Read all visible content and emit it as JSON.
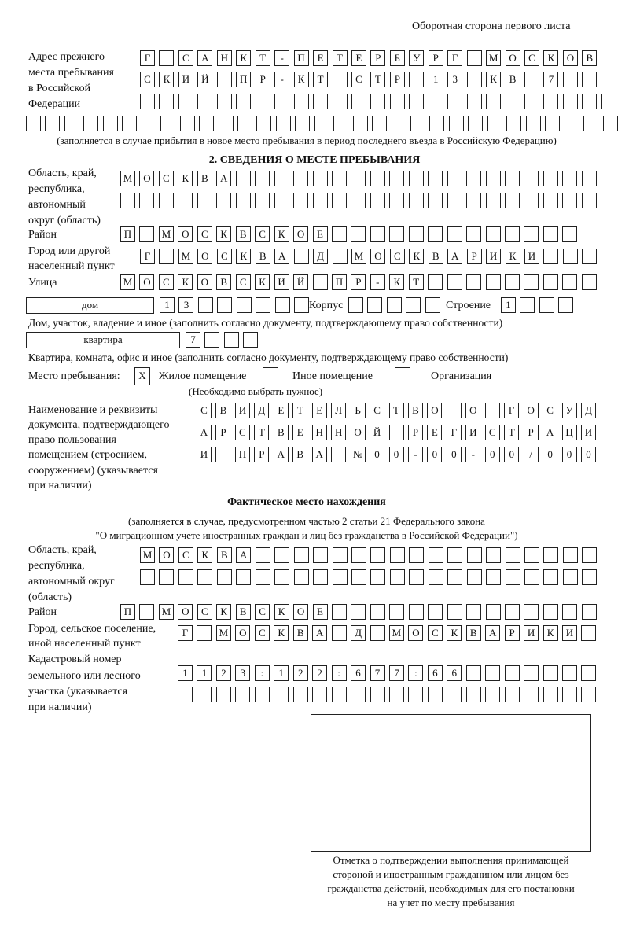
{
  "header": "Оборотная сторона первого листа",
  "prev_address": {
    "label": [
      "Адрес прежнего",
      "места пребывания",
      "в Российской",
      "Федерации"
    ],
    "rows": [
      [
        "Г",
        " ",
        "С",
        "А",
        "Н",
        "К",
        "Т",
        "-",
        "П",
        "Е",
        "Т",
        "Е",
        "Р",
        "Б",
        "У",
        "Р",
        "Г",
        " ",
        "М",
        "О",
        "С",
        "К",
        "О",
        "В"
      ],
      [
        "С",
        "К",
        "И",
        "Й",
        " ",
        "П",
        "Р",
        "-",
        "К",
        "Т",
        " ",
        "С",
        "Т",
        "Р",
        " ",
        "1",
        "3",
        " ",
        "К",
        "В",
        " ",
        "7",
        " ",
        " "
      ],
      [
        " ",
        " ",
        " ",
        " ",
        " ",
        " ",
        " ",
        " ",
        " ",
        " ",
        " ",
        " ",
        " ",
        " ",
        " ",
        " ",
        " ",
        " ",
        " ",
        " ",
        " ",
        " ",
        " ",
        " ",
        " "
      ],
      [
        " ",
        " ",
        " ",
        " ",
        " ",
        " ",
        " ",
        " ",
        " ",
        " ",
        " ",
        " ",
        " ",
        " ",
        " ",
        " ",
        " ",
        " ",
        " ",
        " ",
        " ",
        " ",
        " ",
        " ",
        " ",
        " ",
        " ",
        " ",
        " ",
        " ",
        " "
      ]
    ],
    "note": "(заполняется в случае прибытия в новое место пребывания в период последнего въезда в Российскую Федерацию)"
  },
  "section2": {
    "title": "2. СВЕДЕНИЯ О МЕСТЕ ПРЕБЫВАНИЯ",
    "region_label": [
      "Область, край,",
      "республика,",
      "автономный",
      "округ (область)"
    ],
    "region": [
      [
        "М",
        "О",
        "С",
        "К",
        "В",
        "А",
        " ",
        " ",
        " ",
        " ",
        " ",
        " ",
        " ",
        " ",
        " ",
        " ",
        " ",
        " ",
        " ",
        " ",
        " ",
        " ",
        " ",
        " ",
        " "
      ],
      [
        " ",
        " ",
        " ",
        " ",
        " ",
        " ",
        " ",
        " ",
        " ",
        " ",
        " ",
        " ",
        " ",
        " ",
        " ",
        " ",
        " ",
        " ",
        " ",
        " ",
        " ",
        " ",
        " ",
        " ",
        " "
      ]
    ],
    "district_label": "Район",
    "district": [
      "П",
      " ",
      "М",
      "О",
      "С",
      "К",
      "В",
      "С",
      "К",
      "О",
      "Е",
      " ",
      " ",
      " ",
      " ",
      " ",
      " ",
      " ",
      " ",
      " ",
      " ",
      " ",
      " ",
      " "
    ],
    "city_label": [
      "Город или другой",
      "населенный пункт"
    ],
    "city": [
      "Г",
      " ",
      "М",
      "О",
      "С",
      "К",
      "В",
      "А",
      " ",
      "Д",
      " ",
      "М",
      "О",
      "С",
      "К",
      "В",
      "А",
      "Р",
      "И",
      "К",
      "И",
      " ",
      " ",
      " "
    ],
    "street_label": "Улица",
    "street": [
      "М",
      "О",
      "С",
      "К",
      "О",
      "В",
      "С",
      "К",
      "И",
      "Й",
      " ",
      "П",
      "Р",
      "-",
      "К",
      "Т",
      " ",
      " ",
      " ",
      " ",
      " ",
      " ",
      " ",
      " ",
      " "
    ],
    "house_type": "дом",
    "house": [
      "1",
      "3",
      " ",
      " ",
      " ",
      " ",
      " ",
      " "
    ],
    "building_label": "Корпус",
    "building": [
      " ",
      " ",
      " ",
      " ",
      " "
    ],
    "structure_label": "Строение",
    "structure": [
      "1",
      " ",
      " ",
      " "
    ],
    "house_note": "Дом, участок, владение и иное (заполнить согласно документу, подтверждающему право собственности)",
    "apt_type": "квартира",
    "apt": [
      "7",
      " ",
      " ",
      " "
    ],
    "apt_note": "Квартира, комната, офис и иное (заполнить согласно документу, подтверждающему право собственности)",
    "stay_label": "Место пребывания:",
    "options": [
      {
        "label": "Жилое помещение",
        "mark": "X"
      },
      {
        "label": "Иное помещение",
        "mark": ""
      },
      {
        "label": "Организация",
        "mark": ""
      }
    ],
    "choose_note": "(Необходимо выбрать нужное)",
    "doc_label": [
      "Наименование и реквизиты",
      "документа, подтверждающего",
      "право пользования",
      "помещением (строением,",
      "сооружением) (указывается",
      "при наличии)"
    ],
    "doc": [
      [
        "С",
        "В",
        "И",
        "Д",
        "Е",
        "Т",
        "Е",
        "Л",
        "Ь",
        "С",
        "Т",
        "В",
        "О",
        " ",
        "О",
        " ",
        "Г",
        "О",
        "С",
        "У",
        "Д"
      ],
      [
        "А",
        "Р",
        "С",
        "Т",
        "В",
        "Е",
        "Н",
        "Н",
        "О",
        "Й",
        " ",
        "Р",
        "Е",
        "Г",
        "И",
        "С",
        "Т",
        "Р",
        "А",
        "Ц",
        "И"
      ],
      [
        "И",
        " ",
        "П",
        "Р",
        "А",
        "В",
        "А",
        " ",
        "№",
        "0",
        "0",
        "-",
        "0",
        "0",
        "-",
        "0",
        "0",
        "/",
        "0",
        "0",
        "0"
      ]
    ]
  },
  "actual": {
    "title": "Фактическое место нахождения",
    "note": [
      "(заполняется в случае, предусмотренном частью 2 статьи 21 Федерального закона",
      "\"О миграционном учете иностранных граждан и лиц без гражданства в Российской Федерации\")"
    ],
    "region_label": [
      "Область, край,",
      "республика,",
      "автономный округ",
      "(область)"
    ],
    "region": [
      [
        "М",
        "О",
        "С",
        "К",
        "В",
        "А",
        " ",
        " ",
        " ",
        " ",
        " ",
        " ",
        " ",
        " ",
        " ",
        " ",
        " ",
        " ",
        " ",
        " ",
        " ",
        " ",
        " ",
        " "
      ],
      [
        " ",
        " ",
        " ",
        " ",
        " ",
        " ",
        " ",
        " ",
        " ",
        " ",
        " ",
        " ",
        " ",
        " ",
        " ",
        " ",
        " ",
        " ",
        " ",
        " ",
        " ",
        " ",
        " ",
        " "
      ]
    ],
    "district_label": "Район",
    "district": [
      "П",
      " ",
      "М",
      "О",
      "С",
      "К",
      "В",
      "С",
      "К",
      "О",
      "Е",
      " ",
      " ",
      " ",
      " ",
      " ",
      " ",
      " ",
      " ",
      " ",
      " ",
      " ",
      " ",
      " ",
      " "
    ],
    "city_label": [
      "Город, сельское поселение,",
      "иной населенный пункт"
    ],
    "city": [
      "Г",
      " ",
      "М",
      "О",
      "С",
      "К",
      "В",
      "А",
      " ",
      "Д",
      " ",
      "М",
      "О",
      "С",
      "К",
      "В",
      "А",
      "Р",
      "И",
      "К",
      "И",
      " "
    ],
    "cadastral_label": [
      "Кадастровый номер",
      "земельного или лесного",
      "участка (указывается",
      "при наличии)"
    ],
    "cadastral": [
      [
        "1",
        "1",
        "2",
        "3",
        ":",
        "1",
        "2",
        "2",
        ":",
        "6",
        "7",
        "7",
        ":",
        "6",
        "6",
        " ",
        " ",
        " ",
        " ",
        " ",
        " ",
        " "
      ],
      [
        " ",
        " ",
        " ",
        " ",
        " ",
        " ",
        " ",
        " ",
        " ",
        " ",
        " ",
        " ",
        " ",
        " ",
        " ",
        " ",
        " ",
        " ",
        " ",
        " ",
        " ",
        " "
      ]
    ]
  },
  "stamp_caption": [
    "Отметка о подтверждении выполнения принимающей",
    "стороной и иностранным гражданином или лицом без",
    "гражданства действий, необходимых для его постановки",
    "на учет по месту пребывания"
  ]
}
